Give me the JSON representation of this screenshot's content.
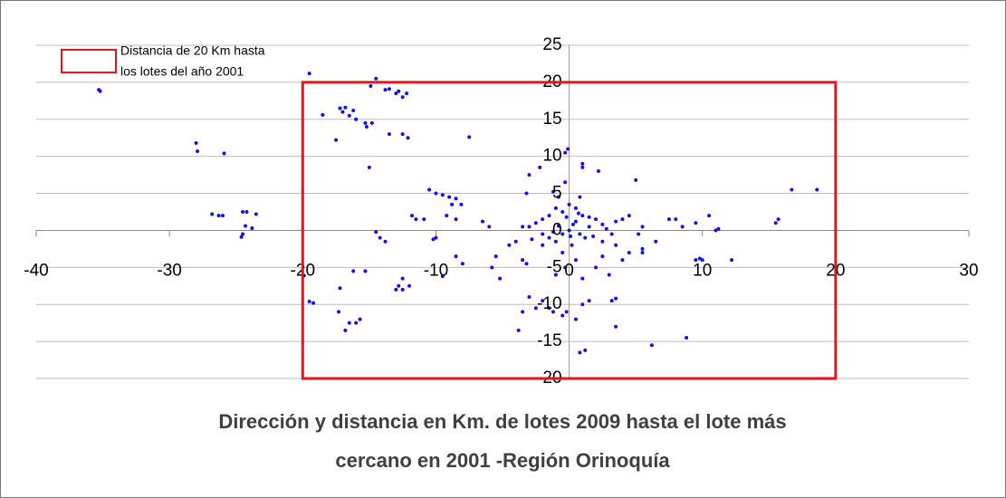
{
  "chart_data": {
    "type": "scatter",
    "title": [
      "Dirección y distancia en Km. de lotes 2009 hasta el lote más",
      "cercano en 2001 -Región Orinoquía"
    ],
    "color": "#1111ee",
    "xlim": [
      -40,
      30
    ],
    "xticks": [
      -40,
      -30,
      -20,
      -10,
      0,
      10,
      20,
      30
    ],
    "ylim": [
      -20,
      25
    ],
    "yticks": [
      -20,
      -15,
      -10,
      -5,
      0,
      5,
      10,
      15,
      20,
      25
    ],
    "grid": true,
    "box": {
      "label": [
        "Distancia de 20 Km hasta",
        "los lotes del año 2001"
      ],
      "color": "#e8141c",
      "x": [
        -20,
        20
      ],
      "y": [
        -20,
        20
      ]
    },
    "x": [
      -35.3,
      -35.2,
      -28,
      -27.9,
      -25.9,
      -26.8,
      -26.3,
      -26,
      -24.5,
      -24.2,
      -23.5,
      -24.5,
      -24.6,
      -24.3,
      -23.8,
      -19.5,
      -19.2,
      -19.5,
      -19.9,
      -18.5,
      -17.5,
      -17.2,
      -17,
      -16.8,
      -16.5,
      -16.2,
      -16,
      -15.3,
      -15.2,
      -14.8,
      -14.5,
      -14.9,
      -13.8,
      -13.5,
      -13,
      -12.8,
      -12.5,
      -12.2,
      -13.5,
      -12.5,
      -12.1,
      -15,
      -17.2,
      -17.3,
      -16.8,
      -16.5,
      -16,
      -15.7,
      -16.2,
      -15.3,
      -14.5,
      -14.2,
      -13.8,
      -12.5,
      -12.8,
      -13,
      -12.5,
      -12,
      -11.8,
      -11.5,
      -10.9,
      -10.5,
      -10,
      -9.5,
      -9,
      -8.5,
      -8.1,
      -8.8,
      -9.2,
      -8.5,
      -10,
      -10.2,
      -9.5,
      -8.5,
      -8,
      -7.5,
      -6.5,
      -6,
      -5.5,
      -5.8,
      -5.2,
      -4.5,
      -4,
      -3.8,
      -3.5,
      -3.2,
      -3.5,
      -3,
      -2.5,
      -2,
      -1.5,
      -1.2,
      -0.5,
      -0.2,
      0.5,
      -3,
      -3.2,
      -2.2,
      -0.3,
      -0.1,
      -1.2,
      -0.8,
      -0.3,
      0.8,
      1,
      1,
      2.2,
      5,
      7.5,
      8,
      8.5,
      9.5,
      10.5,
      10,
      11,
      11.2,
      12.2,
      15.5,
      15.7,
      16.7,
      18.6,
      9.5,
      9.8,
      8.8,
      6.2,
      3.5,
      3.2,
      3.5,
      1.5,
      1,
      0.8,
      1.2,
      5.5,
      5.5,
      4.5,
      4,
      3.5,
      2.5,
      2,
      3,
      5.2,
      5.5,
      6.5,
      4.5,
      4,
      3.5,
      2.5,
      2,
      1.5,
      1,
      0.5,
      0,
      -0.5,
      -1,
      -1.5,
      -2,
      -2.5,
      -3,
      -3.5,
      -2,
      -1.5,
      -1,
      -0.5,
      0,
      0.3,
      0.8,
      1.2,
      1.8,
      2.5,
      0.2,
      -0.5,
      0.5,
      -0.3,
      1,
      -1,
      -2,
      0.5,
      -0.2,
      0.7,
      -0.8,
      1.5,
      -1.2,
      0.1,
      2.8,
      -2.8,
      3.2
    ],
    "y": [
      19,
      18.8,
      11.8,
      10.7,
      10.4,
      2.2,
      2,
      2,
      2.5,
      2.5,
      2.2,
      -0.5,
      -0.9,
      0.6,
      0.3,
      21.2,
      -9.8,
      -9.6,
      -6.1,
      15.6,
      12.2,
      16.5,
      16,
      16.6,
      15.5,
      16.2,
      15,
      14.5,
      14,
      14.5,
      20.5,
      19.5,
      19,
      19.1,
      18.5,
      18.8,
      18,
      18.5,
      13,
      13,
      12.5,
      8.5,
      -7.8,
      -11,
      -13.5,
      -12.5,
      -12.5,
      -12,
      -5.5,
      -5.5,
      -0.2,
      -1,
      -1.5,
      -6.5,
      -7.5,
      -8,
      -8,
      -7.5,
      2,
      1.5,
      1.5,
      5.5,
      5,
      4.8,
      4.5,
      4.3,
      3.5,
      3.5,
      2,
      1.5,
      -1,
      -1.2,
      -6.2,
      -3.5,
      -4.5,
      12.6,
      1.2,
      0.5,
      -3.5,
      -5,
      -6.5,
      -2,
      -1.5,
      -13.5,
      -4,
      -4.5,
      -11,
      -9,
      -10.5,
      -9.5,
      -10.5,
      -11,
      -11.5,
      -11,
      -12,
      7.5,
      5,
      8.5,
      10.5,
      11,
      5.2,
      4.5,
      6.5,
      4.5,
      8.5,
      9,
      8,
      6.8,
      1.5,
      1.5,
      0.5,
      1,
      2,
      -4,
      0,
      0.2,
      -4,
      1,
      1.5,
      5.5,
      5.5,
      -4,
      -3.8,
      -14.5,
      -15.5,
      -13,
      -9.5,
      -9.2,
      -9.5,
      -10,
      -16.5,
      -16.2,
      -3,
      -2.5,
      -3,
      -4,
      -2,
      -3.5,
      -5,
      -6,
      -0.5,
      0.5,
      -1.5,
      2,
      1.5,
      1.2,
      0.8,
      1.5,
      0.5,
      2,
      3,
      3.5,
      2.5,
      3,
      2,
      1.5,
      1,
      0.5,
      0.5,
      -0.5,
      -1,
      -1.5,
      -0.5,
      0,
      0.8,
      -0.5,
      -1,
      -0.8,
      -1.5,
      -2,
      -3,
      -4,
      -5,
      -6.5,
      -6,
      -2,
      1.2,
      1.8,
      2.3,
      0.6,
      1.8,
      -0.2,
      -0.8,
      0.2,
      -1.2,
      -0.5
    ]
  }
}
